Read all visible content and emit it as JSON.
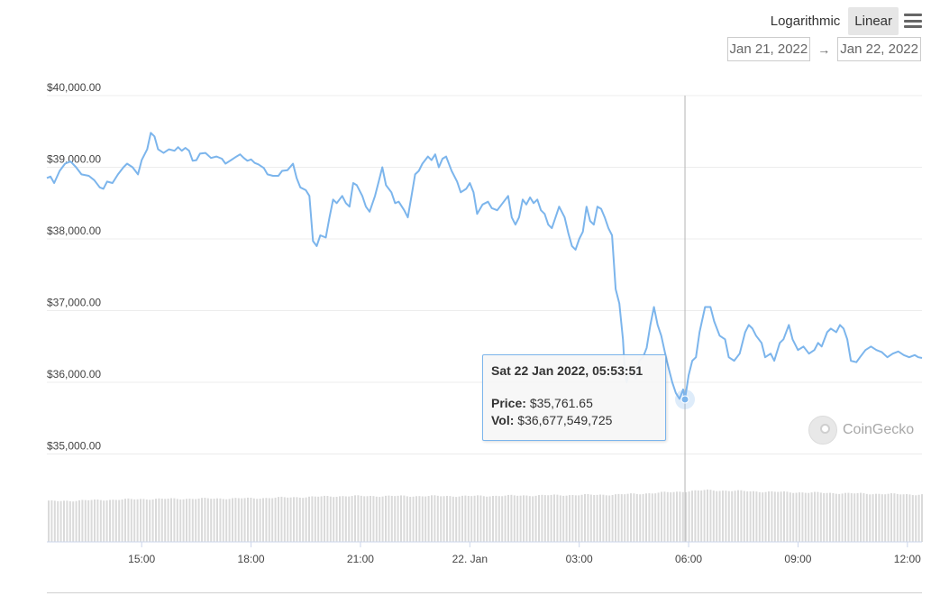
{
  "toolbar": {
    "logarithmic_label": "Logarithmic",
    "linear_label": "Linear",
    "active_scale": "Linear",
    "menu_icon": "hamburger-menu-icon"
  },
  "range": {
    "start": "Jan 21, 2022",
    "arrow": "→",
    "end": "Jan 22, 2022"
  },
  "tooltip": {
    "title": "Sat 22 Jan 2022, 05:53:51",
    "price_label": "Price:",
    "price_value": "$35,761.65",
    "vol_label": "Vol:",
    "vol_value": "$36,677,549,725"
  },
  "watermark": {
    "text": "CoinGecko",
    "icon": "coingecko-logo-icon"
  },
  "colors": {
    "line": "#7cb5ec",
    "volume_bar": "#dadada",
    "grid": "#ececec"
  },
  "chart_data": {
    "type": "line",
    "title": "",
    "xlabel": "",
    "ylabel": "",
    "y_scale": "linear",
    "ylim": [
      34000,
      40000
    ],
    "y_ticks": [
      35000,
      36000,
      37000,
      38000,
      39000,
      40000
    ],
    "y_tick_labels": [
      "$35,000.00",
      "$36,000.00",
      "$37,000.00",
      "$38,000.00",
      "$39,000.00",
      "$40,000.00"
    ],
    "xlim_hours": [
      12.4,
      36.4
    ],
    "x_ticks": [
      15,
      18,
      21,
      24,
      27,
      30,
      33,
      36
    ],
    "x_tick_labels": [
      "15:00",
      "18:00",
      "21:00",
      "22. Jan",
      "03:00",
      "06:00",
      "09:00",
      "12:00"
    ],
    "hover_point": {
      "t": 29.9,
      "price": 35761.65
    },
    "series": [
      {
        "values": [
          [
            12.4,
            38850
          ],
          [
            12.5,
            38870
          ],
          [
            12.6,
            38780
          ],
          [
            12.75,
            38950
          ],
          [
            12.9,
            39050
          ],
          [
            13.05,
            39080
          ],
          [
            13.2,
            39000
          ],
          [
            13.35,
            38900
          ],
          [
            13.55,
            38880
          ],
          [
            13.7,
            38820
          ],
          [
            13.85,
            38720
          ],
          [
            13.95,
            38700
          ],
          [
            14.05,
            38800
          ],
          [
            14.2,
            38780
          ],
          [
            14.35,
            38900
          ],
          [
            14.5,
            39000
          ],
          [
            14.6,
            39050
          ],
          [
            14.75,
            39000
          ],
          [
            14.9,
            38900
          ],
          [
            15.0,
            39100
          ],
          [
            15.15,
            39250
          ],
          [
            15.25,
            39480
          ],
          [
            15.35,
            39430
          ],
          [
            15.45,
            39250
          ],
          [
            15.6,
            39200
          ],
          [
            15.75,
            39250
          ],
          [
            15.9,
            39230
          ],
          [
            16.0,
            39280
          ],
          [
            16.1,
            39230
          ],
          [
            16.2,
            39270
          ],
          [
            16.3,
            39230
          ],
          [
            16.4,
            39090
          ],
          [
            16.5,
            39100
          ],
          [
            16.6,
            39190
          ],
          [
            16.75,
            39200
          ],
          [
            16.9,
            39130
          ],
          [
            17.05,
            39150
          ],
          [
            17.2,
            39120
          ],
          [
            17.3,
            39050
          ],
          [
            17.45,
            39100
          ],
          [
            17.6,
            39150
          ],
          [
            17.7,
            39180
          ],
          [
            17.8,
            39130
          ],
          [
            17.9,
            39090
          ],
          [
            18.0,
            39110
          ],
          [
            18.1,
            39060
          ],
          [
            18.2,
            39040
          ],
          [
            18.35,
            38990
          ],
          [
            18.45,
            38900
          ],
          [
            18.6,
            38880
          ],
          [
            18.75,
            38880
          ],
          [
            18.85,
            38950
          ],
          [
            19.0,
            38960
          ],
          [
            19.15,
            39050
          ],
          [
            19.25,
            38850
          ],
          [
            19.35,
            38720
          ],
          [
            19.5,
            38680
          ],
          [
            19.6,
            38600
          ],
          [
            19.7,
            37970
          ],
          [
            19.8,
            37900
          ],
          [
            19.9,
            38050
          ],
          [
            20.05,
            38020
          ],
          [
            20.15,
            38300
          ],
          [
            20.25,
            38550
          ],
          [
            20.35,
            38500
          ],
          [
            20.5,
            38600
          ],
          [
            20.6,
            38500
          ],
          [
            20.7,
            38450
          ],
          [
            20.8,
            38780
          ],
          [
            20.9,
            38750
          ],
          [
            21.05,
            38600
          ],
          [
            21.15,
            38450
          ],
          [
            21.25,
            38380
          ],
          [
            21.4,
            38600
          ],
          [
            21.5,
            38800
          ],
          [
            21.6,
            39000
          ],
          [
            21.7,
            38750
          ],
          [
            21.85,
            38650
          ],
          [
            21.95,
            38500
          ],
          [
            22.05,
            38520
          ],
          [
            22.2,
            38400
          ],
          [
            22.3,
            38300
          ],
          [
            22.4,
            38600
          ],
          [
            22.5,
            38900
          ],
          [
            22.6,
            38950
          ],
          [
            22.7,
            39050
          ],
          [
            22.85,
            39150
          ],
          [
            22.95,
            39100
          ],
          [
            23.05,
            39180
          ],
          [
            23.15,
            39000
          ],
          [
            23.25,
            39120
          ],
          [
            23.35,
            39150
          ],
          [
            23.5,
            38950
          ],
          [
            23.65,
            38800
          ],
          [
            23.75,
            38650
          ],
          [
            23.9,
            38700
          ],
          [
            24.0,
            38780
          ],
          [
            24.1,
            38650
          ],
          [
            24.2,
            38350
          ],
          [
            24.35,
            38480
          ],
          [
            24.5,
            38520
          ],
          [
            24.6,
            38430
          ],
          [
            24.75,
            38400
          ],
          [
            24.9,
            38500
          ],
          [
            25.05,
            38600
          ],
          [
            25.15,
            38300
          ],
          [
            25.25,
            38200
          ],
          [
            25.35,
            38300
          ],
          [
            25.45,
            38550
          ],
          [
            25.55,
            38480
          ],
          [
            25.65,
            38580
          ],
          [
            25.75,
            38500
          ],
          [
            25.85,
            38550
          ],
          [
            25.95,
            38400
          ],
          [
            26.05,
            38350
          ],
          [
            26.15,
            38200
          ],
          [
            26.25,
            38150
          ],
          [
            26.35,
            38300
          ],
          [
            26.45,
            38450
          ],
          [
            26.6,
            38300
          ],
          [
            26.7,
            38080
          ],
          [
            26.8,
            37900
          ],
          [
            26.9,
            37850
          ],
          [
            27.0,
            38000
          ],
          [
            27.1,
            38100
          ],
          [
            27.2,
            38450
          ],
          [
            27.3,
            38250
          ],
          [
            27.4,
            38200
          ],
          [
            27.5,
            38450
          ],
          [
            27.6,
            38420
          ],
          [
            27.7,
            38300
          ],
          [
            27.8,
            38150
          ],
          [
            27.9,
            38050
          ],
          [
            28.0,
            37300
          ],
          [
            28.1,
            37100
          ],
          [
            28.2,
            36600
          ],
          [
            28.25,
            36150
          ],
          [
            28.3,
            36000
          ],
          [
            28.35,
            36100
          ],
          [
            28.45,
            36200
          ],
          [
            28.55,
            36050
          ],
          [
            28.65,
            36300
          ],
          [
            28.75,
            36350
          ],
          [
            28.85,
            36480
          ],
          [
            28.95,
            36800
          ],
          [
            29.05,
            37050
          ],
          [
            29.15,
            36800
          ],
          [
            29.25,
            36650
          ],
          [
            29.4,
            36300
          ],
          [
            29.55,
            36000
          ],
          [
            29.65,
            35850
          ],
          [
            29.75,
            35770
          ],
          [
            29.85,
            35900
          ],
          [
            29.9,
            35761.65
          ],
          [
            30.0,
            36100
          ],
          [
            30.1,
            36300
          ],
          [
            30.2,
            36350
          ],
          [
            30.3,
            36700
          ],
          [
            30.45,
            37050
          ],
          [
            30.6,
            37050
          ],
          [
            30.7,
            36850
          ],
          [
            30.85,
            36650
          ],
          [
            31.0,
            36600
          ],
          [
            31.1,
            36350
          ],
          [
            31.25,
            36300
          ],
          [
            31.4,
            36400
          ],
          [
            31.55,
            36700
          ],
          [
            31.65,
            36800
          ],
          [
            31.75,
            36750
          ],
          [
            31.85,
            36650
          ],
          [
            32.0,
            36550
          ],
          [
            32.1,
            36350
          ],
          [
            32.25,
            36400
          ],
          [
            32.35,
            36300
          ],
          [
            32.5,
            36550
          ],
          [
            32.6,
            36600
          ],
          [
            32.75,
            36800
          ],
          [
            32.85,
            36600
          ],
          [
            33.0,
            36450
          ],
          [
            33.15,
            36500
          ],
          [
            33.3,
            36400
          ],
          [
            33.45,
            36450
          ],
          [
            33.55,
            36550
          ],
          [
            33.65,
            36500
          ],
          [
            33.8,
            36700
          ],
          [
            33.9,
            36750
          ],
          [
            34.05,
            36700
          ],
          [
            34.15,
            36800
          ],
          [
            34.25,
            36750
          ],
          [
            34.35,
            36600
          ],
          [
            34.45,
            36300
          ],
          [
            34.6,
            36280
          ],
          [
            34.7,
            36350
          ],
          [
            34.85,
            36450
          ],
          [
            35.0,
            36500
          ],
          [
            35.15,
            36450
          ],
          [
            35.3,
            36420
          ],
          [
            35.45,
            36350
          ],
          [
            35.6,
            36400
          ],
          [
            35.75,
            36430
          ],
          [
            35.9,
            36380
          ],
          [
            36.05,
            36350
          ],
          [
            36.2,
            36380
          ],
          [
            36.3,
            36350
          ],
          [
            36.4,
            36340
          ]
        ]
      }
    ],
    "volume_profile": [
      [
        12.4,
        0.55
      ],
      [
        15.0,
        0.58
      ],
      [
        18.0,
        0.59
      ],
      [
        20.5,
        0.62
      ],
      [
        24.0,
        0.62
      ],
      [
        26.0,
        0.63
      ],
      [
        28.0,
        0.64
      ],
      [
        29.0,
        0.66
      ],
      [
        30.5,
        0.7
      ],
      [
        32.0,
        0.68
      ],
      [
        34.0,
        0.66
      ],
      [
        36.4,
        0.64
      ]
    ]
  }
}
